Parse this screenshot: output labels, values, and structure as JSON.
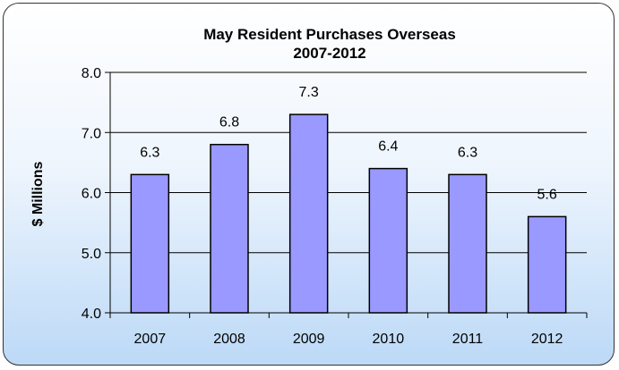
{
  "chart_data": {
    "type": "bar",
    "title": "May Resident Purchases Overseas",
    "subtitle": "2007-2012",
    "xlabel": "",
    "ylabel": "$ Millions",
    "categories": [
      "2007",
      "2008",
      "2009",
      "2010",
      "2011",
      "2012"
    ],
    "values": [
      6.3,
      6.8,
      7.3,
      6.4,
      6.3,
      5.6
    ],
    "data_labels": [
      "6.3",
      "6.8",
      "7.3",
      "6.4",
      "6.3",
      "5.6"
    ],
    "ylim": [
      4.0,
      8.0
    ],
    "yticks": [
      "4.0",
      "5.0",
      "6.0",
      "7.0",
      "8.0"
    ],
    "grid": true,
    "legend": "none",
    "bar_color": "#9999ff",
    "bar_border_color": "#000000"
  }
}
